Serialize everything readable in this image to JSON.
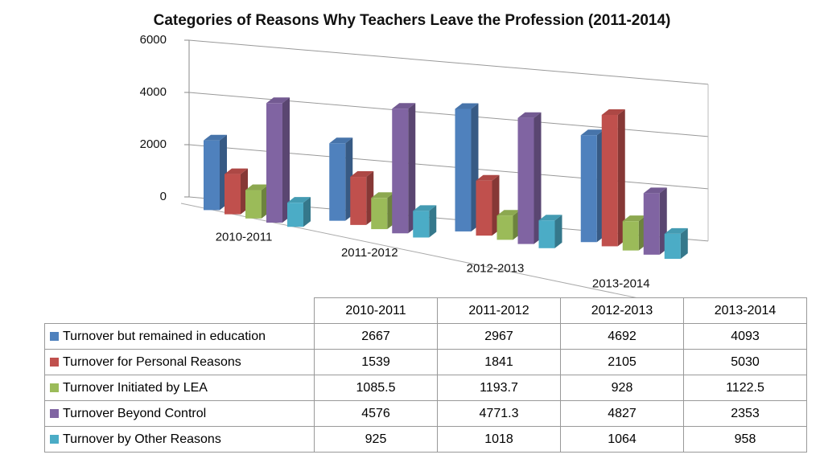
{
  "chart_data": {
    "type": "bar3d",
    "title": "Categories of Reasons Why Teachers Leave the Profession (2011-2014)",
    "categories": [
      "2010-2011",
      "2011-2012",
      "2012-2013",
      "2013-2014"
    ],
    "series": [
      {
        "name": "Turnover but remained in education",
        "color": "#4f81bd",
        "values": [
          2667,
          2967,
          4692,
          4093
        ]
      },
      {
        "name": "Turnover for Personal Reasons",
        "color": "#c0504d",
        "values": [
          1539,
          1841,
          2105,
          5030
        ]
      },
      {
        "name": "Turnover Initiated by LEA",
        "color": "#9bbb59",
        "values": [
          1085.5,
          1193.7,
          928,
          1122.5
        ]
      },
      {
        "name": "Turnover Beyond Control",
        "color": "#8064a2",
        "values": [
          4576,
          4771.3,
          4827,
          2353
        ]
      },
      {
        "name": "Turnover by Other Reasons",
        "color": "#4bacc6",
        "values": [
          925,
          1018,
          1064,
          958
        ]
      }
    ],
    "ylim": [
      0,
      6000
    ],
    "yticks": [
      0,
      2000,
      4000,
      6000
    ],
    "grid": true
  }
}
